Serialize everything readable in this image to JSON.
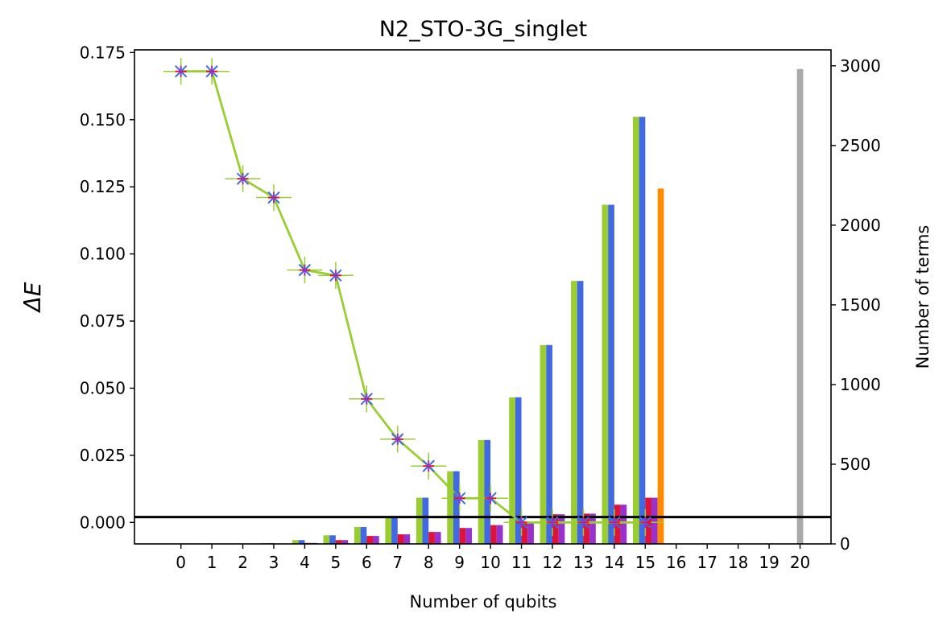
{
  "chart_data": {
    "type": "bar",
    "title": "N2_STO-3G_singlet",
    "xlabel": "Number of qubits",
    "ylabel": "ΔE",
    "y2label": "Number of terms",
    "ylim": [
      -0.008,
      0.176
    ],
    "y2lim": [
      0,
      3100
    ],
    "xlim": [
      -1.5,
      21.0
    ],
    "grid": false,
    "x_ticks": [
      0,
      1,
      2,
      3,
      4,
      5,
      6,
      7,
      8,
      9,
      10,
      11,
      12,
      13,
      14,
      15,
      16,
      17,
      18,
      19,
      20
    ],
    "y_ticks": [
      0.0,
      0.025,
      0.05,
      0.075,
      0.1,
      0.125,
      0.15,
      0.175
    ],
    "y_tick_labels": [
      "0.000",
      "0.025",
      "0.050",
      "0.075",
      "0.100",
      "0.125",
      "0.150",
      "0.175"
    ],
    "y2_ticks": [
      0,
      500,
      1000,
      1500,
      2000,
      2500,
      3000
    ],
    "y2_tick_labels": [
      "0",
      "500",
      "1000",
      "1500",
      "2000",
      "2500",
      "3000"
    ],
    "reference_line_y": 0.002,
    "bar_width": 0.2,
    "bar_series": [
      {
        "color": "#9acd32",
        "offset": -0.4,
        "values": [
          0,
          0,
          1,
          5,
          24,
          54,
          106,
          166,
          290,
          456,
          652,
          920,
          1248,
          1650,
          2128,
          2680,
          0,
          0,
          0,
          0,
          0
        ]
      },
      {
        "color": "#4169e1",
        "offset": -0.2,
        "values": [
          0,
          0,
          1,
          5,
          24,
          54,
          106,
          166,
          290,
          456,
          652,
          920,
          1248,
          1650,
          2128,
          2680,
          0,
          0,
          0,
          0,
          0
        ]
      },
      {
        "color": "#dc143c",
        "offset": 0.0,
        "values": [
          0,
          0,
          0,
          0,
          6,
          24,
          50,
          60,
          75,
          100,
          118,
          130,
          186,
          190,
          246,
          290,
          0,
          0,
          0,
          0,
          0
        ]
      },
      {
        "color": "#9932cc",
        "offset": 0.2,
        "values": [
          0,
          0,
          0,
          0,
          6,
          24,
          50,
          60,
          75,
          100,
          118,
          130,
          186,
          190,
          246,
          290,
          0,
          0,
          0,
          0,
          0
        ]
      }
    ],
    "single_bars": [
      {
        "x": 15.5,
        "value": 2230,
        "color": "#ff8c00"
      },
      {
        "x": 20.0,
        "value": 2980,
        "color": "#a9a9a9"
      }
    ],
    "delta_e": {
      "x": [
        0,
        1,
        2,
        3,
        4,
        5,
        6,
        7,
        8,
        9,
        10,
        11,
        12,
        13,
        14,
        15
      ],
      "y": [
        0.168,
        0.168,
        0.128,
        0.121,
        0.094,
        0.092,
        0.046,
        0.031,
        0.021,
        0.009,
        0.009,
        0.0,
        0.0,
        0.0,
        0.0,
        0.0
      ],
      "line_color": "#9acd32",
      "marker_colors": [
        "#9acd32",
        "#4169e1",
        "#dc143c",
        "#9932cc"
      ],
      "error_half_height": 0.005
    }
  }
}
